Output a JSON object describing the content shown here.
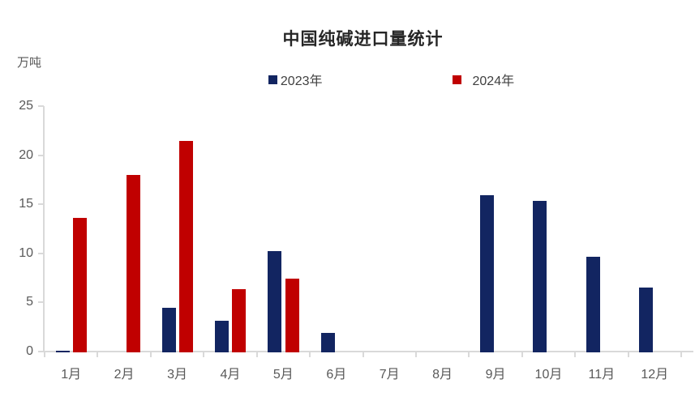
{
  "title": "中国纯碱进口量统计",
  "y_axis_unit": "万吨",
  "legend": {
    "items": [
      {
        "label": "2023年",
        "color": "#122561"
      },
      {
        "label": "2024年",
        "color": "#c00000"
      }
    ]
  },
  "chart_data": {
    "type": "bar",
    "title": "中国纯碱进口量统计",
    "xlabel": "",
    "ylabel": "万吨",
    "categories": [
      "1月",
      "2月",
      "3月",
      "4月",
      "5月",
      "6月",
      "7月",
      "8月",
      "9月",
      "10月",
      "11月",
      "12月"
    ],
    "series": [
      {
        "name": "2023年",
        "color": "#122561",
        "values": [
          0.2,
          null,
          4.5,
          3.2,
          10.3,
          2.0,
          null,
          null,
          16.0,
          15.4,
          9.7,
          6.6
        ]
      },
      {
        "name": "2024年",
        "color": "#c00000",
        "values": [
          13.7,
          18.1,
          21.5,
          6.4,
          7.5,
          null,
          null,
          null,
          null,
          null,
          null,
          null
        ]
      }
    ],
    "ylim": [
      0,
      25
    ],
    "yticks": [
      0,
      5,
      10,
      15,
      20,
      25
    ],
    "grid": false,
    "legend_position": "top",
    "axis_color": "#d9d9d9",
    "tick_label_color": "#595959"
  }
}
